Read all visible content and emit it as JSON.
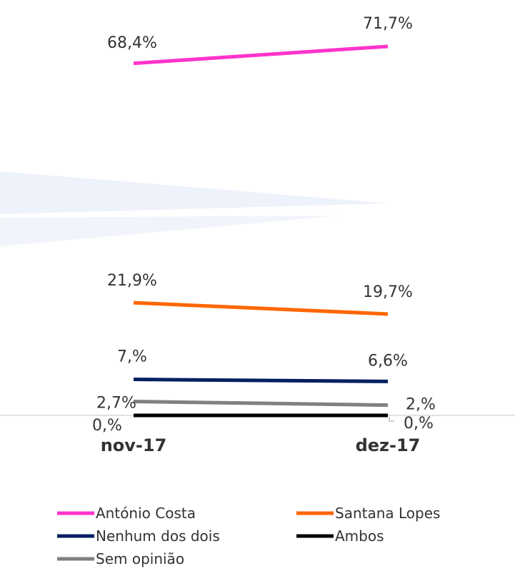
{
  "chart_data": {
    "type": "line",
    "categories": [
      "nov-17",
      "dez-17"
    ],
    "series": [
      {
        "name": "António Costa",
        "color": "#ff33cc",
        "values": [
          68.4,
          71.7
        ],
        "labels": [
          "68,4%",
          "71,7%"
        ]
      },
      {
        "name": "Santana Lopes",
        "color": "#ff6600",
        "values": [
          21.9,
          19.7
        ],
        "labels": [
          "21,9%",
          "19,7%"
        ]
      },
      {
        "name": "Nenhum dos dois",
        "color": "#002060",
        "values": [
          7.0,
          6.6
        ],
        "labels": [
          "7,%",
          "6,6%"
        ]
      },
      {
        "name": "Ambos",
        "color": "#000000",
        "values": [
          0.0,
          0.0
        ],
        "labels": [
          "0,%",
          "0,%"
        ]
      },
      {
        "name": "Sem opinião",
        "color": "#808080",
        "values": [
          2.7,
          2.0
        ],
        "labels": [
          "2,7%",
          "2,%"
        ]
      }
    ],
    "ylim": [
      0,
      75
    ],
    "grid": false,
    "legend_position": "bottom"
  }
}
